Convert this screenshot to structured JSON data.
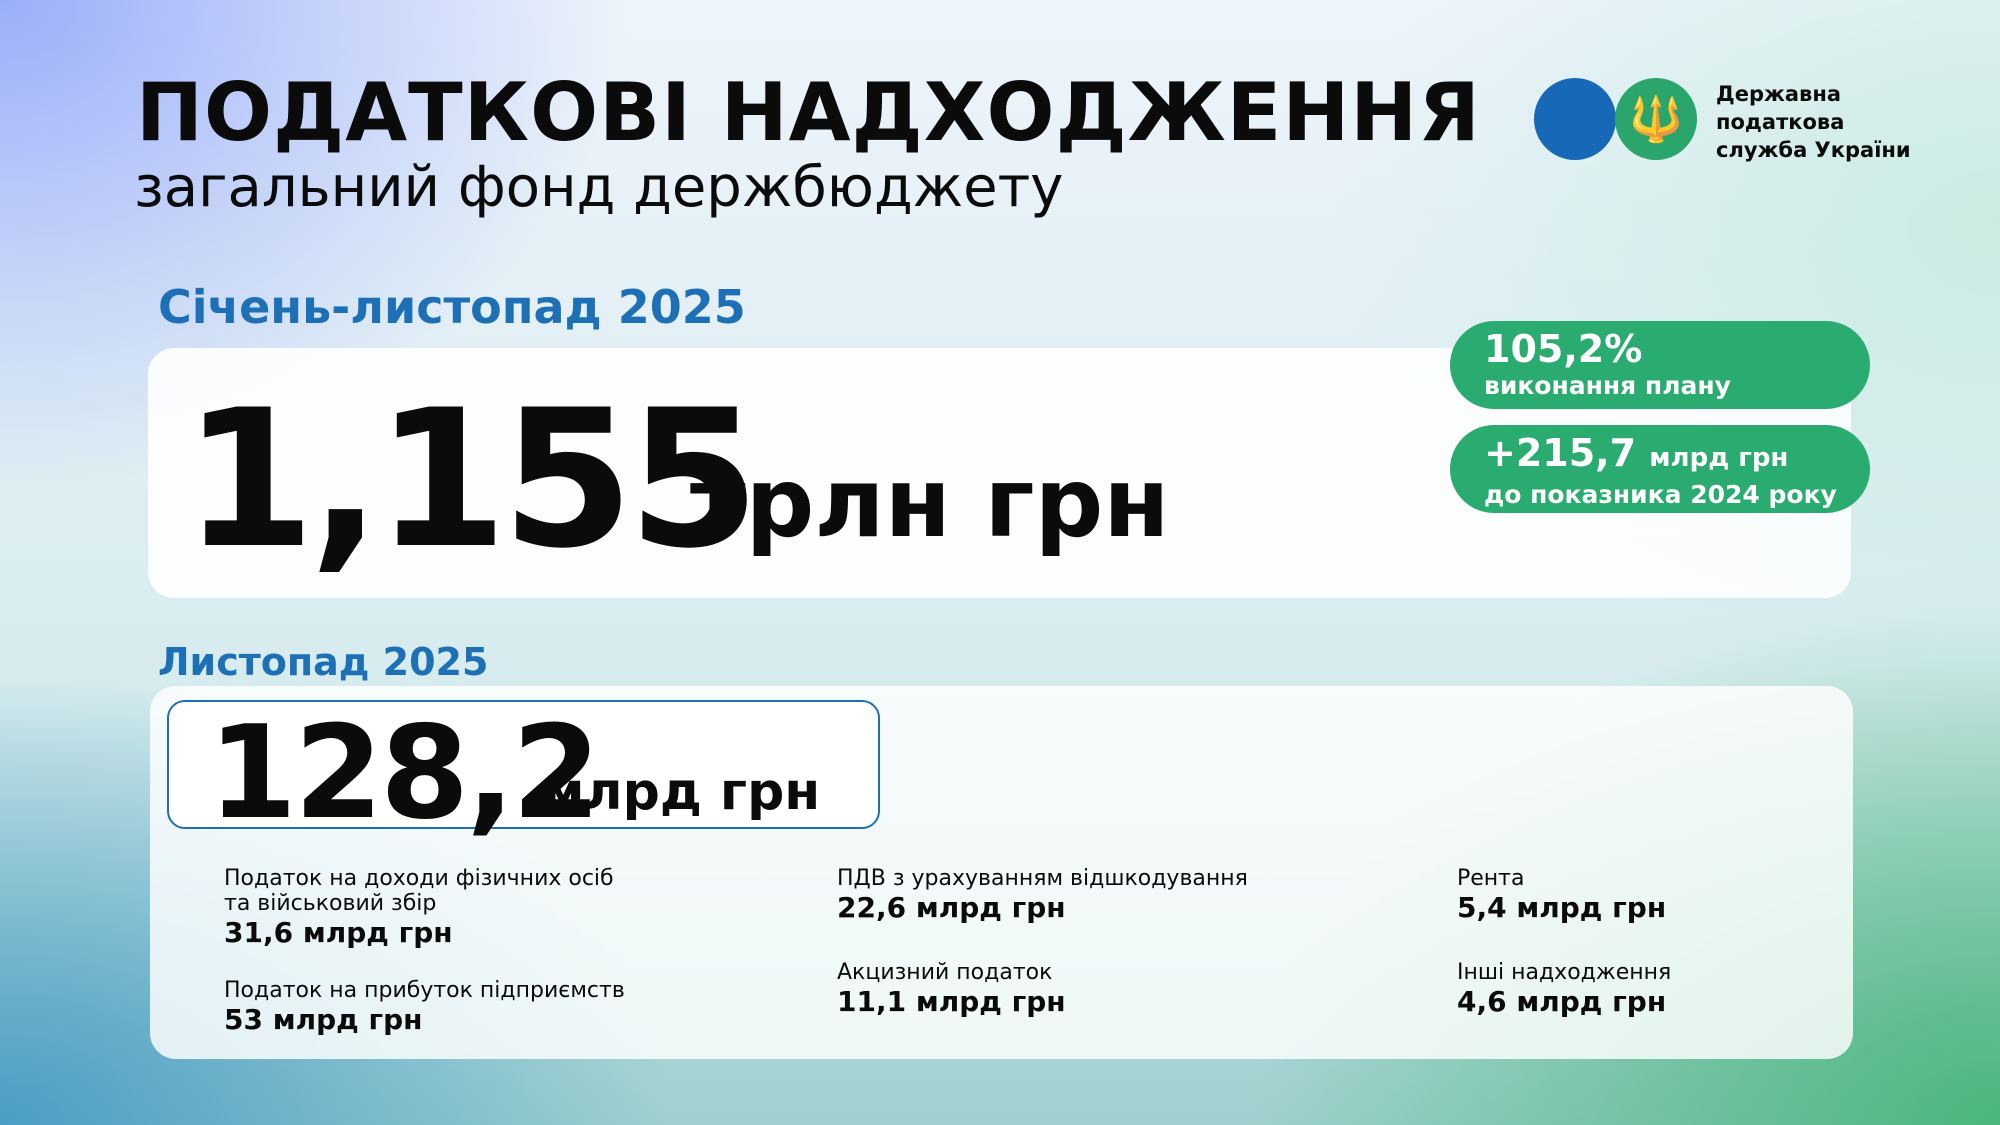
{
  "header": {
    "title": "ПОДАТКОВІ НАДХОДЖЕННЯ",
    "subtitle": "загальний фонд держбюджету"
  },
  "logo": {
    "line1": "Державна",
    "line2": "податкова",
    "line3": "служба України",
    "emblem": "trident-icon",
    "colors": {
      "blue": "#1769b8",
      "green": "#2aa56c"
    }
  },
  "period_total": {
    "label": "Січень-листопад 2025",
    "value": "1,155",
    "unit": "трлн грн"
  },
  "badges": [
    {
      "value": "105,2%",
      "unit": "",
      "label": "виконання плану"
    },
    {
      "value": "+215,7",
      "unit": "млрд грн",
      "label": "до показника 2024 року"
    }
  ],
  "month": {
    "label": "Листопад 2025",
    "value": "128,2",
    "unit": "млрд грн"
  },
  "items": [
    {
      "label": "Податок на доходи фізичних осіб",
      "label2": "та військовий збір",
      "value": "31,6 млрд грн"
    },
    {
      "label": "Податок на прибуток підприємств",
      "value": "53 млрд грн"
    },
    {
      "label": "ПДВ з урахуванням відшкодування",
      "value": "22,6 млрд грн"
    },
    {
      "label": "Акцизний податок",
      "value": "11,1 млрд грн"
    },
    {
      "label": "Рента",
      "value": "5,4 млрд грн"
    },
    {
      "label": "Інші надходження",
      "value": "4,6 млрд грн"
    }
  ],
  "colors": {
    "accent_blue": "#1d6fb6",
    "badge_green": "#2aab6f"
  }
}
